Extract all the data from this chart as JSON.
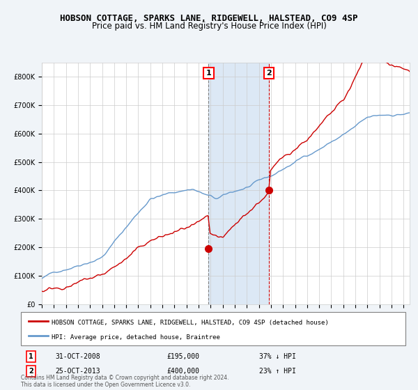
{
  "title": "HOBSON COTTAGE, SPARKS LANE, RIDGEWELL, HALSTEAD, CO9 4SP",
  "subtitle": "Price paid vs. HM Land Registry's House Price Index (HPI)",
  "red_label": "HOBSON COTTAGE, SPARKS LANE, RIDGEWELL, HALSTEAD, CO9 4SP (detached house)",
  "blue_label": "HPI: Average price, detached house, Braintree",
  "sale1_date": "31-OCT-2008",
  "sale1_price": 195000,
  "sale1_pct": "37% ↓ HPI",
  "sale1_year": 2008.83,
  "sale2_date": "25-OCT-2013",
  "sale2_price": 400000,
  "sale2_pct": "23% ↑ HPI",
  "sale2_year": 2013.82,
  "footnote": "Contains HM Land Registry data © Crown copyright and database right 2024.\nThis data is licensed under the Open Government Licence v3.0.",
  "ylim": [
    0,
    850000
  ],
  "xlim_start": 1995,
  "xlim_end": 2025.5,
  "red_color": "#cc0000",
  "blue_color": "#6699cc",
  "bg_color": "#f0f4f8",
  "plot_bg": "#ffffff",
  "shade_color": "#dce8f5",
  "grid_color": "#cccccc"
}
